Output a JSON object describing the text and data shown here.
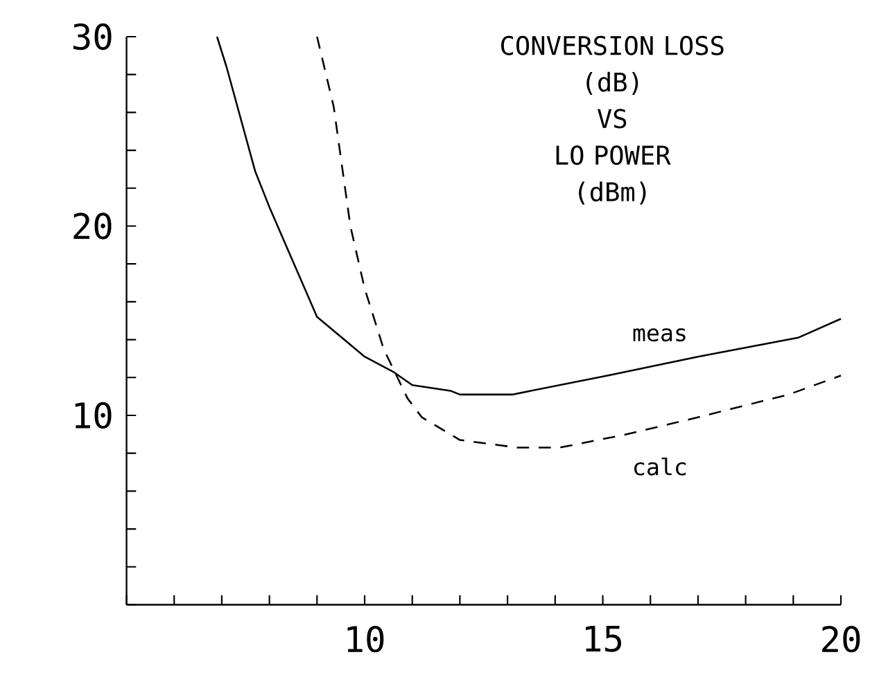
{
  "chart_data": {
    "type": "line",
    "title": "CONVERSION LOSS\n(dB)\nVS\nLO POWER\n(dBm)",
    "xlim": [
      5,
      20
    ],
    "ylim": [
      0,
      30
    ],
    "xticks": [
      {
        "value": 5,
        "label": null
      },
      {
        "value": 6,
        "label": null
      },
      {
        "value": 7,
        "label": null
      },
      {
        "value": 8,
        "label": null
      },
      {
        "value": 9,
        "label": null
      },
      10,
      {
        "value": 11,
        "label": null
      },
      {
        "value": 12,
        "label": null
      },
      {
        "value": 13,
        "label": null
      },
      {
        "value": 14,
        "label": null
      },
      15,
      {
        "value": 16,
        "label": null
      },
      {
        "value": 17,
        "label": null
      },
      {
        "value": 18,
        "label": null
      },
      {
        "value": 19,
        "label": null
      },
      20
    ],
    "yticks": [
      {
        "value": 0,
        "label": null
      },
      {
        "value": 2,
        "label": null
      },
      {
        "value": 4,
        "label": null
      },
      {
        "value": 6,
        "label": null
      },
      {
        "value": 8,
        "label": null
      },
      10,
      {
        "value": 12,
        "label": null
      },
      {
        "value": 14,
        "label": null
      },
      {
        "value": 16,
        "label": null
      },
      {
        "value": 18,
        "label": null
      },
      20,
      {
        "value": 22,
        "label": null
      },
      {
        "value": 24,
        "label": null
      },
      {
        "value": 26,
        "label": null
      },
      {
        "value": 28,
        "label": null
      },
      30
    ],
    "grid": false,
    "legend": false,
    "marker": "none",
    "series": [
      {
        "name": "meas",
        "color": "#000000",
        "line_style": "solid",
        "x": [
          6.9,
          7.1,
          7.7,
          8.0,
          9.0,
          10.0,
          10.6,
          11.0,
          11.8,
          12.0,
          13.1,
          15.1,
          17.0,
          19.1,
          20.0
        ],
        "values": [
          30.0,
          28.4,
          22.9,
          21.0,
          15.2,
          13.1,
          12.3,
          11.6,
          11.3,
          11.1,
          11.1,
          12.1,
          13.1,
          14.1,
          15.1
        ]
      },
      {
        "name": "calc",
        "color": "#000000",
        "line_style": "dashed",
        "x": [
          9.0,
          9.35,
          9.7,
          10.0,
          10.4,
          10.9,
          11.2,
          11.8,
          12.0,
          13.2,
          14.1,
          15.5,
          17.0,
          18.9,
          20.0
        ],
        "values": [
          30.0,
          26.3,
          20.0,
          16.7,
          13.5,
          10.9,
          9.9,
          9.0,
          8.7,
          8.3,
          8.3,
          9.0,
          9.9,
          11.1,
          12.1
        ]
      }
    ]
  }
}
